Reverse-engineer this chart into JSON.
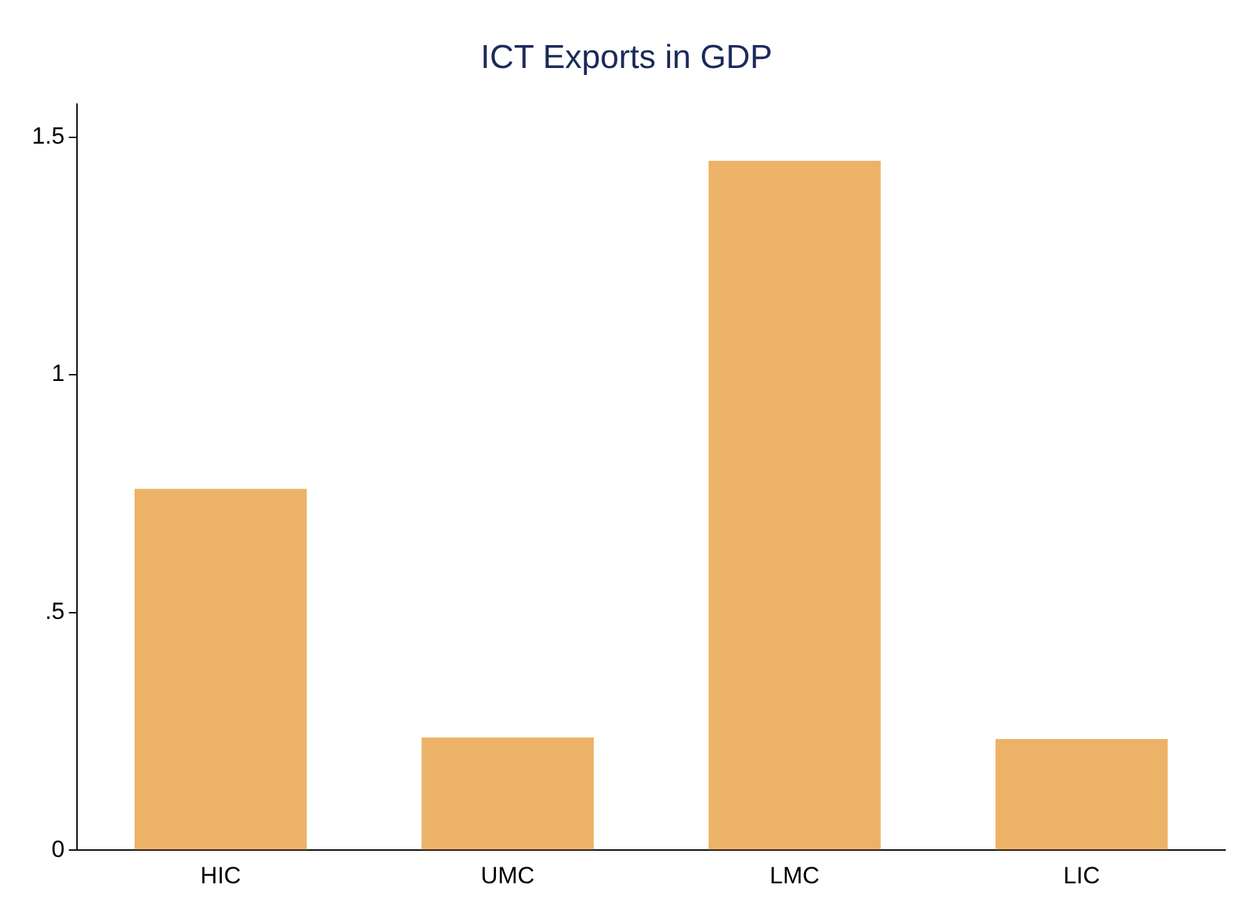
{
  "chart_data": {
    "type": "bar",
    "title": "ICT Exports in GDP",
    "categories": [
      "HIC",
      "UMC",
      "LMC",
      "LIC"
    ],
    "values": [
      0.76,
      0.237,
      1.45,
      0.234
    ],
    "color": "#ecb267",
    "ylim": [
      0,
      1.57
    ],
    "yticks": [
      0,
      {
        "value": 0.5,
        "label": ".5"
      },
      1,
      1.5
    ],
    "grid": false,
    "legend": false
  }
}
